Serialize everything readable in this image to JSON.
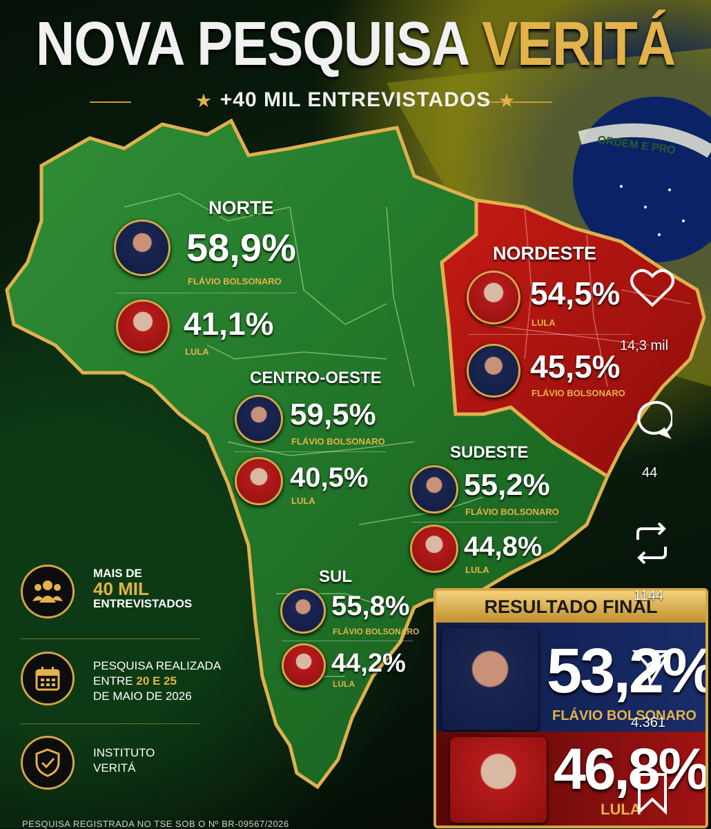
{
  "header": {
    "title_white": "NOVA PESQUISA",
    "title_gold": "VERITÁ",
    "subtitle": "+40 MIL ENTREVISTADOS",
    "star_left": "★",
    "star_right": "★"
  },
  "flag_text": "ORDEM E PRO",
  "regions": {
    "norte": {
      "title": "NORTE",
      "first": {
        "pct": "58,9%",
        "name": "FLÁVIO BOLSONARO"
      },
      "second": {
        "pct": "41,1%",
        "name": "LULA"
      }
    },
    "nordeste": {
      "title": "NORDESTE",
      "first": {
        "pct": "54,5%",
        "name": "LULA"
      },
      "second": {
        "pct": "45,5%",
        "name": "FLÁVIO BOLSONARO"
      }
    },
    "centro_oeste": {
      "title": "CENTRO-OESTE",
      "first": {
        "pct": "59,5%",
        "name": "FLÁVIO BOLSONARO"
      },
      "second": {
        "pct": "40,5%",
        "name": "LULA"
      }
    },
    "sudeste": {
      "title": "SUDESTE",
      "first": {
        "pct": "55,2%",
        "name": "FLÁVIO BOLSONARO"
      },
      "second": {
        "pct": "44,8%",
        "name": "LULA"
      }
    },
    "sul": {
      "title": "SUL",
      "first": {
        "pct": "55,8%",
        "name": "FLÁVIO BOLSONARO"
      },
      "second": {
        "pct": "44,2%",
        "name": "LULA"
      }
    }
  },
  "info": {
    "interviews_l1": "MAIS DE",
    "interviews_l2": "40 MIL",
    "interviews_l3": "ENTREVISTADOS",
    "date_l1": "PESQUISA REALIZADA",
    "date_l2": "ENTRE",
    "date_l2_gold": "20 E 25",
    "date_l3": "DE MAIO DE 2026",
    "inst_l1": "INSTITUTO",
    "inst_l2": "VERITÁ"
  },
  "final": {
    "head": "RESULTADO FINAL",
    "first": {
      "pct": "53,2%",
      "name": "FLÁVIO BOLSONARO"
    },
    "second": {
      "pct": "46,8%",
      "name": "LULA"
    }
  },
  "social": {
    "likes": "14,3 mil",
    "comments": "44",
    "reposts": "1144",
    "shares": "4.361"
  },
  "footer": "PESQUISA REGISTRADA NO TSE SOB O Nº BR-09567/2026",
  "colors": {
    "gold": "#d6a646",
    "green": "#1f7a2a",
    "red": "#b3140f"
  }
}
